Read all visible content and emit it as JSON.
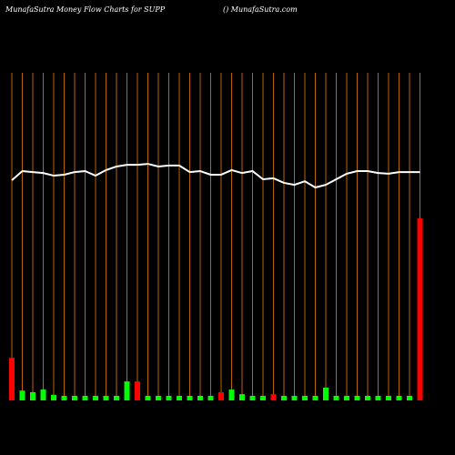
{
  "chart_data": {
    "type": "money-flow",
    "title": "MunafaSutra  Money Flow  Charts for SUPP",
    "subtitle": "() MunafaSutra.com",
    "ylim": [
      0,
      100
    ],
    "bar_values": [
      13,
      3,
      2.5,
      3.3,
      1.7,
      1.4,
      1.4,
      1.4,
      1.4,
      1.4,
      1.4,
      5.8,
      5.8,
      1.4,
      1.4,
      1.4,
      1.4,
      1.4,
      1.4,
      1.4,
      2.5,
      3.3,
      1.9,
      1.4,
      1.4,
      1.9,
      1.4,
      1.4,
      1.4,
      1.4,
      3.9,
      1.4,
      1.4,
      1.4,
      1.4,
      1.4,
      1.4,
      1.4,
      1.4,
      55.6
    ],
    "bar_colors": [
      "#ff0000",
      "#00ff00",
      "#00ff00",
      "#00ff00",
      "#00ff00",
      "#00ff00",
      "#00ff00",
      "#00ff00",
      "#00ff00",
      "#00ff00",
      "#00ff00",
      "#00ff00",
      "#ff0000",
      "#00ff00",
      "#00ff00",
      "#00ff00",
      "#00ff00",
      "#00ff00",
      "#00ff00",
      "#00ff00",
      "#ff0000",
      "#00ff00",
      "#00ff00",
      "#00ff00",
      "#00ff00",
      "#ff0000",
      "#00ff00",
      "#00ff00",
      "#00ff00",
      "#00ff00",
      "#00ff00",
      "#00ff00",
      "#00ff00",
      "#00ff00",
      "#00ff00",
      "#00ff00",
      "#00ff00",
      "#00ff00",
      "#00ff00",
      "#ff0000"
    ],
    "line_values": [
      67.2,
      70,
      69.7,
      69.4,
      68.6,
      68.9,
      69.7,
      70,
      68.6,
      70.3,
      71.4,
      71.9,
      71.9,
      72.2,
      71.4,
      71.7,
      71.7,
      69.7,
      70,
      68.9,
      68.9,
      70.3,
      69.4,
      70,
      67.5,
      67.8,
      66.4,
      65.8,
      66.9,
      65,
      65.8,
      67.5,
      69.2,
      70,
      70,
      69.4,
      69.2,
      69.7,
      69.7,
      69.7
    ],
    "line_color": "#ffffff",
    "column_line_color": "#b8650a"
  }
}
